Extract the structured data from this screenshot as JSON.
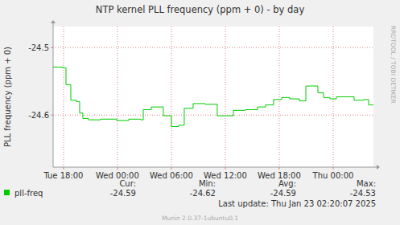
{
  "chart_data": {
    "type": "line",
    "title": "NTP kernel PLL frequency (ppm + 0) - by day",
    "y_label": "PLL frequency (ppm + 0)",
    "side_text": "RRDTOOL / TOBI OETIKER",
    "x": [
      16.84,
      17.82,
      18.27,
      18.81,
      19.43,
      19.79,
      20.15,
      20.78,
      22.12,
      23.91,
      25.25,
      26.6,
      26.87,
      27.76,
      29.1,
      30.0,
      30.81,
      31.43,
      32.42,
      33.76,
      35.1,
      36.9,
      38.24,
      39.58,
      40.48,
      41.37,
      42.27,
      43.16,
      44.24,
      44.96,
      46.3,
      46.93,
      47.64,
      48.36,
      50.33,
      51.4,
      51.94,
      52.48
    ],
    "series": [
      {
        "name": "pll-freq",
        "color": "#00cc00",
        "line_style": "step",
        "values": [
          -24.529,
          -24.53,
          -24.555,
          -24.578,
          -24.58,
          -24.597,
          -24.605,
          -24.607,
          -24.606,
          -24.608,
          -24.606,
          -24.607,
          -24.592,
          -24.588,
          -24.601,
          -24.617,
          -24.615,
          -24.59,
          -24.583,
          -24.584,
          -24.601,
          -24.593,
          -24.592,
          -24.588,
          -24.585,
          -24.577,
          -24.574,
          -24.576,
          -24.579,
          -24.557,
          -24.567,
          -24.574,
          -24.576,
          -24.573,
          -24.578,
          -24.577,
          -24.585,
          -24.585
        ]
      }
    ],
    "xlim": [
      16.84,
      52.48
    ],
    "xticks": [
      {
        "value": 18,
        "label": "Tue 18:00"
      },
      {
        "value": 24,
        "label": "Wed 00:00"
      },
      {
        "value": 30,
        "label": "Wed 06:00"
      },
      {
        "value": 36,
        "label": "Wed 12:00"
      },
      {
        "value": 42,
        "label": "Wed 18:00"
      },
      {
        "value": 48,
        "label": "Thu 00:00"
      }
    ],
    "ylim": [
      -24.677,
      -24.469
    ],
    "yticks": [
      -24.6,
      -24.5
    ],
    "grid": true,
    "stats": [
      {
        "label": "Cur:",
        "value": -24.59
      },
      {
        "label": "Min:",
        "value": -24.62
      },
      {
        "label": "Avg:",
        "value": -24.59
      },
      {
        "label": "Max:",
        "value": -24.53
      }
    ],
    "last_update": "Last update:  Thu Jan 23 02:20:07 2025",
    "footer": "Munin 2.0.37-1ubuntu0.1"
  }
}
